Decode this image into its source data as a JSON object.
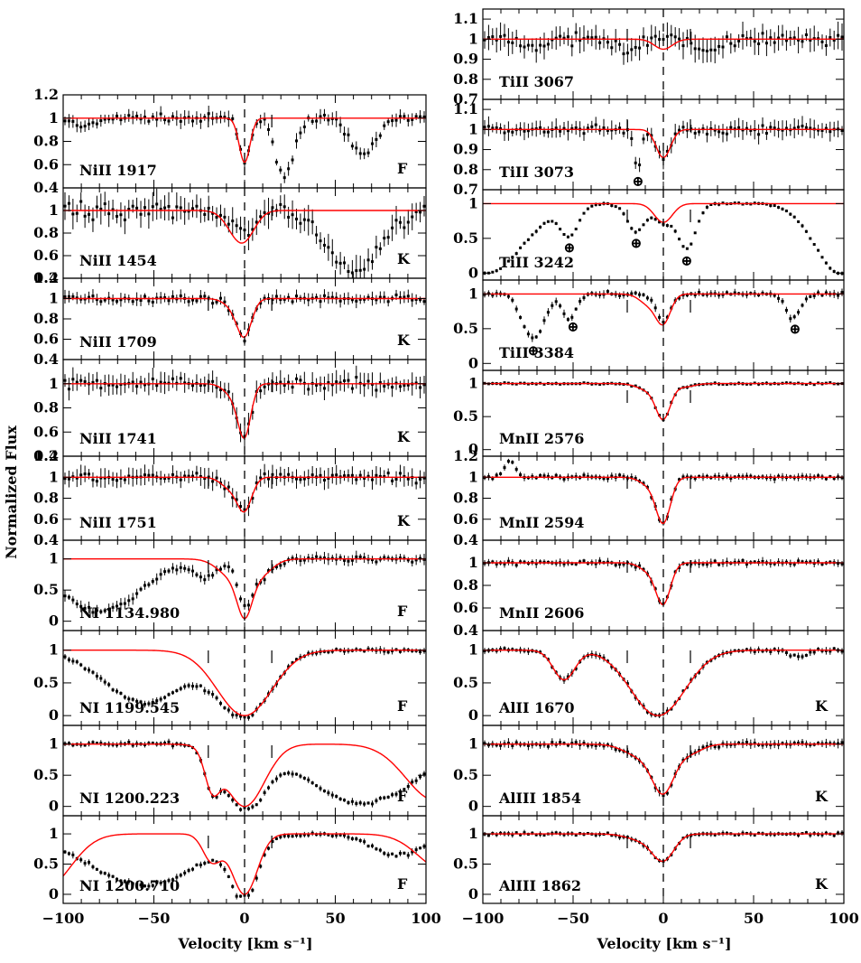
{
  "figure": {
    "ylabel": "Normalized Flux",
    "xlabel": "Velocity [km s⁻¹]"
  },
  "chart_data": [
    {
      "type": "scatter",
      "column": "left",
      "label": "NiII 1917",
      "flag": "F",
      "ylim": [
        0.4,
        1.2
      ],
      "yticks": [
        "0.4",
        "0.6",
        "0.8",
        "1",
        "1.2"
      ],
      "absorptions": [
        {
          "v": 0,
          "depth": 0.38,
          "w": 3
        }
      ],
      "data_absorptions": [
        {
          "v": 0,
          "depth": 0.38,
          "w": 3
        },
        {
          "v": 22,
          "depth": 0.5,
          "w": 5
        },
        {
          "v": 65,
          "depth": 0.32,
          "w": 7
        },
        {
          "v": -88,
          "depth": 0.08,
          "w": 6
        }
      ],
      "continuum_tilt": 0,
      "noise": 0.035
    },
    {
      "type": "scatter",
      "column": "left",
      "label": "NiII 1454",
      "flag": "K",
      "ylim": [
        0.4,
        1.2
      ],
      "yticks": [
        "0.4",
        "0.6",
        "0.8",
        "1"
      ],
      "absorptions": [
        {
          "v": 0,
          "depth": 0.22,
          "w": 6
        },
        {
          "v": -6,
          "depth": 0.1,
          "w": 6
        }
      ],
      "data_absorptions": [
        {
          "v": 0,
          "depth": 0.22,
          "w": 6
        },
        {
          "v": 60,
          "depth": 0.55,
          "w": 14
        }
      ],
      "continuum_tilt": 0,
      "noise": 0.07
    },
    {
      "type": "scatter",
      "column": "left",
      "label": "NiII 1709",
      "flag": "K",
      "ylim": [
        0.4,
        1.2
      ],
      "yticks": [
        "0.4",
        "0.6",
        "0.8",
        "1",
        "1.2"
      ],
      "absorptions": [
        {
          "v": 0,
          "depth": 0.34,
          "w": 4
        },
        {
          "v": -6,
          "depth": 0.08,
          "w": 5
        }
      ],
      "data_absorptions": [
        {
          "v": 0,
          "depth": 0.34,
          "w": 4
        },
        {
          "v": -6,
          "depth": 0.08,
          "w": 5
        }
      ],
      "continuum_tilt": 0,
      "noise": 0.035
    },
    {
      "type": "scatter",
      "column": "left",
      "label": "NiII 1741",
      "flag": "K",
      "ylim": [
        0.4,
        1.2
      ],
      "yticks": [
        "0.4",
        "0.6",
        "0.8",
        "1"
      ],
      "absorptions": [
        {
          "v": 0,
          "depth": 0.4,
          "w": 3.5
        },
        {
          "v": -6,
          "depth": 0.1,
          "w": 5
        }
      ],
      "data_absorptions": [
        {
          "v": 0,
          "depth": 0.4,
          "w": 3.5
        },
        {
          "v": -6,
          "depth": 0.1,
          "w": 5
        }
      ],
      "continuum_tilt": 0,
      "noise": 0.05
    },
    {
      "type": "scatter",
      "column": "left",
      "label": "NiII 1751",
      "flag": "K",
      "ylim": [
        0.4,
        1.2
      ],
      "yticks": [
        "0.4",
        "0.6",
        "0.8",
        "1",
        "1.2"
      ],
      "absorptions": [
        {
          "v": 0,
          "depth": 0.3,
          "w": 4
        },
        {
          "v": -8,
          "depth": 0.1,
          "w": 5
        }
      ],
      "data_absorptions": [
        {
          "v": 0,
          "depth": 0.3,
          "w": 4
        },
        {
          "v": -8,
          "depth": 0.1,
          "w": 5
        }
      ],
      "continuum_tilt": 0,
      "noise": 0.05
    },
    {
      "type": "scatter",
      "column": "left",
      "label": "NI 1134.980",
      "flag": "F",
      "ylim": [
        -0.15,
        1.3
      ],
      "yticks": [
        "0",
        "0.5",
        "1"
      ],
      "absorptions": [
        {
          "v": 0,
          "depth": 0.6,
          "w": 4
        },
        {
          "v": -6,
          "depth": 0.3,
          "w": 8
        },
        {
          "v": 8,
          "depth": 0.25,
          "w": 7
        }
      ],
      "data_absorptions": [
        {
          "v": 0,
          "depth": 0.6,
          "w": 4
        },
        {
          "v": -80,
          "depth": 0.85,
          "w": 22
        },
        {
          "v": -22,
          "depth": 0.3,
          "w": 6
        },
        {
          "v": 8,
          "depth": 0.3,
          "w": 7
        }
      ],
      "continuum_tilt": 0,
      "noise": 0.05
    },
    {
      "type": "scatter",
      "column": "left",
      "label": "NI 1199.545",
      "flag": "F",
      "ylim": [
        -0.15,
        1.3
      ],
      "yticks": [
        "0",
        "0.5",
        "1"
      ],
      "absorptions": [
        {
          "v": 0,
          "depth": 1.0,
          "w": 15
        }
      ],
      "data_absorptions": [
        {
          "v": 0,
          "depth": 1.0,
          "w": 15
        },
        {
          "v": -55,
          "depth": 0.8,
          "w": 22
        }
      ],
      "continuum_tilt": 0,
      "noise": 0.03
    },
    {
      "type": "scatter",
      "column": "left",
      "label": "NI 1200.223",
      "flag": "F",
      "ylim": [
        -0.15,
        1.3
      ],
      "yticks": [
        "0",
        "0.5",
        "1"
      ],
      "absorptions": [
        {
          "v": 0,
          "depth": 1.0,
          "w": 11
        },
        {
          "v": -18,
          "depth": 0.55,
          "w": 4
        },
        {
          "v": 105,
          "depth": 0.9,
          "w": 16
        }
      ],
      "data_absorptions": [
        {
          "v": 0,
          "depth": 1.0,
          "w": 11
        },
        {
          "v": -18,
          "depth": 0.55,
          "w": 4
        },
        {
          "v": 65,
          "depth": 0.95,
          "w": 30
        }
      ],
      "continuum_tilt": 0,
      "noise": 0.03
    },
    {
      "type": "scatter",
      "column": "left",
      "label": "NI 1200.710",
      "flag": "F",
      "ylim": [
        -0.15,
        1.3
      ],
      "yticks": [
        "0",
        "0.5",
        "1"
      ],
      "absorptions": [
        {
          "v": 0,
          "depth": 1.0,
          "w": 7
        },
        {
          "v": -18,
          "depth": 0.45,
          "w": 5
        },
        {
          "v": -110,
          "depth": 0.9,
          "w": 14
        },
        {
          "v": 110,
          "depth": 0.6,
          "w": 14
        }
      ],
      "data_absorptions": [
        {
          "v": 0,
          "depth": 1.0,
          "w": 7
        },
        {
          "v": -55,
          "depth": 0.85,
          "w": 30
        },
        {
          "v": 85,
          "depth": 0.35,
          "w": 14
        }
      ],
      "continuum_tilt": 0,
      "noise": 0.03
    },
    {
      "type": "scatter",
      "column": "right",
      "label": "TiII 3067",
      "flag": "",
      "ylim": [
        0.7,
        1.15
      ],
      "yticks": [
        "0.7",
        "0.8",
        "0.9",
        "1",
        "1.1"
      ],
      "absorptions": [
        {
          "v": 0,
          "depth": 0.05,
          "w": 5
        }
      ],
      "data_absorptions": [
        {
          "v": -20,
          "depth": 0.08,
          "w": 5
        },
        {
          "v": 25,
          "depth": 0.06,
          "w": 6
        },
        {
          "v": -70,
          "depth": 0.05,
          "w": 5
        }
      ],
      "continuum_tilt": 0,
      "noise": 0.035
    },
    {
      "type": "scatter",
      "column": "right",
      "label": "TiII 3073",
      "flag": "",
      "ylim": [
        0.7,
        1.15
      ],
      "yticks": [
        "0.7",
        "0.8",
        "0.9",
        "1",
        "1.1"
      ],
      "absorptions": [
        {
          "v": 0,
          "depth": 0.14,
          "w": 4
        }
      ],
      "data_absorptions": [
        {
          "v": 0,
          "depth": 0.14,
          "w": 4
        },
        {
          "v": -14,
          "depth": 0.2,
          "w": 2
        }
      ],
      "continuum_tilt": 0,
      "noise": 0.025
    },
    {
      "type": "scatter",
      "column": "right",
      "label": "TiII 3242",
      "flag": "",
      "ylim": [
        -0.1,
        1.2
      ],
      "yticks": [
        "0",
        "0.5",
        "1"
      ],
      "absorptions": [
        {
          "v": 0,
          "depth": 0.27,
          "w": 5
        }
      ],
      "data_absorptions": [
        {
          "v": 0,
          "depth": 0.27,
          "w": 5
        },
        {
          "v": -52,
          "depth": 0.4,
          "w": 5
        },
        {
          "v": -15,
          "depth": 0.4,
          "w": 5
        },
        {
          "v": 13,
          "depth": 0.65,
          "w": 5
        },
        {
          "v": -98,
          "depth": 1.0,
          "w": 20
        },
        {
          "v": 98,
          "depth": 1.0,
          "w": 14
        }
      ],
      "continuum_tilt": 0,
      "noise": 0.015
    },
    {
      "type": "scatter",
      "column": "right",
      "label": "TiII 3384",
      "flag": "",
      "ylim": [
        -0.1,
        1.2
      ],
      "yticks": [
        "0",
        "0.5",
        "1"
      ],
      "absorptions": [
        {
          "v": 0,
          "depth": 0.4,
          "w": 4
        },
        {
          "v": -8,
          "depth": 0.15,
          "w": 5
        }
      ],
      "data_absorptions": [
        {
          "v": 0,
          "depth": 0.4,
          "w": 4
        },
        {
          "v": -72,
          "depth": 0.65,
          "w": 6
        },
        {
          "v": -52,
          "depth": 0.35,
          "w": 4
        },
        {
          "v": 72,
          "depth": 0.35,
          "w": 4
        }
      ],
      "continuum_tilt": 0,
      "noise": 0.03
    },
    {
      "type": "scatter",
      "column": "right",
      "label": "MnII 2576",
      "flag": "",
      "ylim": [
        -0.1,
        1.2
      ],
      "yticks": [
        "0",
        "0.5",
        "1"
      ],
      "absorptions": [
        {
          "v": 0,
          "depth": 0.5,
          "w": 4
        },
        {
          "v": -8,
          "depth": 0.1,
          "w": 6
        },
        {
          "v": 12,
          "depth": 0.05,
          "w": 5
        }
      ],
      "data_absorptions": [
        {
          "v": 0,
          "depth": 0.5,
          "w": 4
        },
        {
          "v": -8,
          "depth": 0.1,
          "w": 6
        },
        {
          "v": 12,
          "depth": 0.05,
          "w": 5
        }
      ],
      "continuum_tilt": 0,
      "noise": 0.015
    },
    {
      "type": "scatter",
      "column": "right",
      "label": "MnII 2594",
      "flag": "",
      "ylim": [
        0.4,
        1.2
      ],
      "yticks": [
        "0.4",
        "0.6",
        "0.8",
        "1",
        "1.2"
      ],
      "absorptions": [
        {
          "v": 0,
          "depth": 0.42,
          "w": 4
        },
        {
          "v": -8,
          "depth": 0.07,
          "w": 5
        }
      ],
      "data_absorptions": [
        {
          "v": 0,
          "depth": 0.42,
          "w": 4
        },
        {
          "v": -8,
          "depth": 0.07,
          "w": 5
        },
        {
          "v": -85,
          "depth": -0.15,
          "w": 3
        }
      ],
      "continuum_tilt": 0,
      "noise": 0.02
    },
    {
      "type": "scatter",
      "column": "right",
      "label": "MnII 2606",
      "flag": "",
      "ylim": [
        0.4,
        1.2
      ],
      "yticks": [
        "0.4",
        "0.6",
        "0.8",
        "1"
      ],
      "absorptions": [
        {
          "v": 0,
          "depth": 0.35,
          "w": 4
        },
        {
          "v": -8,
          "depth": 0.07,
          "w": 5
        }
      ],
      "data_absorptions": [
        {
          "v": 0,
          "depth": 0.35,
          "w": 4
        },
        {
          "v": -8,
          "depth": 0.07,
          "w": 5
        }
      ],
      "continuum_tilt": 0,
      "noise": 0.02
    },
    {
      "type": "scatter",
      "column": "right",
      "label": "AlII 1670",
      "flag": "K",
      "ylim": [
        -0.15,
        1.3
      ],
      "yticks": [
        "0",
        "0.5",
        "1"
      ],
      "absorptions": [
        {
          "v": -3,
          "depth": 1.0,
          "w": 15
        },
        {
          "v": -55,
          "depth": 0.45,
          "w": 6
        }
      ],
      "data_absorptions": [
        {
          "v": -3,
          "depth": 1.0,
          "w": 15
        },
        {
          "v": -55,
          "depth": 0.45,
          "w": 6
        },
        {
          "v": 75,
          "depth": 0.1,
          "w": 5
        }
      ],
      "continuum_tilt": 0,
      "noise": 0.03
    },
    {
      "type": "scatter",
      "column": "right",
      "label": "AlIII 1854",
      "flag": "K",
      "ylim": [
        -0.15,
        1.3
      ],
      "yticks": [
        "0",
        "0.5",
        "1"
      ],
      "absorptions": [
        {
          "v": 0,
          "depth": 0.7,
          "w": 6
        },
        {
          "v": -12,
          "depth": 0.2,
          "w": 9
        },
        {
          "v": 14,
          "depth": 0.15,
          "w": 7
        }
      ],
      "data_absorptions": [
        {
          "v": 0,
          "depth": 0.7,
          "w": 6
        },
        {
          "v": -12,
          "depth": 0.2,
          "w": 9
        },
        {
          "v": 14,
          "depth": 0.15,
          "w": 7
        }
      ],
      "continuum_tilt": 0,
      "noise": 0.04
    },
    {
      "type": "scatter",
      "column": "right",
      "label": "AlIII 1862",
      "flag": "K",
      "ylim": [
        -0.15,
        1.3
      ],
      "yticks": [
        "0",
        "0.5",
        "1"
      ],
      "absorptions": [
        {
          "v": 0,
          "depth": 0.42,
          "w": 6
        },
        {
          "v": -12,
          "depth": 0.1,
          "w": 8
        }
      ],
      "data_absorptions": [
        {
          "v": 0,
          "depth": 0.42,
          "w": 6
        },
        {
          "v": -12,
          "depth": 0.1,
          "w": 8
        }
      ],
      "continuum_tilt": 0,
      "noise": 0.025
    }
  ],
  "xaxis": {
    "xlim": [
      -100,
      100
    ],
    "xticks": [
      "−100",
      "−50",
      "0",
      "50",
      "100"
    ],
    "xtick_values": [
      -100,
      -50,
      0,
      50,
      100
    ]
  },
  "markers": {
    "component_velocities": [
      -20,
      0,
      15
    ]
  },
  "annotations": [
    {
      "panel": "TiII 3073",
      "v": -14,
      "symbol": "⊕"
    },
    {
      "panel": "TiII 3242",
      "v": -52,
      "symbol": "⊕"
    },
    {
      "panel": "TiII 3242",
      "v": -15,
      "symbol": "⊕"
    },
    {
      "panel": "TiII 3242",
      "v": 13,
      "symbol": "⊕"
    },
    {
      "panel": "TiII 3384",
      "v": -72,
      "symbol": "⊕"
    },
    {
      "panel": "TiII 3384",
      "v": -50,
      "symbol": "⊕"
    },
    {
      "panel": "TiII 3384",
      "v": 73,
      "symbol": "⊕"
    }
  ],
  "colors": {
    "model": "#ff0000",
    "data": "#000000",
    "axes": "#000000"
  }
}
